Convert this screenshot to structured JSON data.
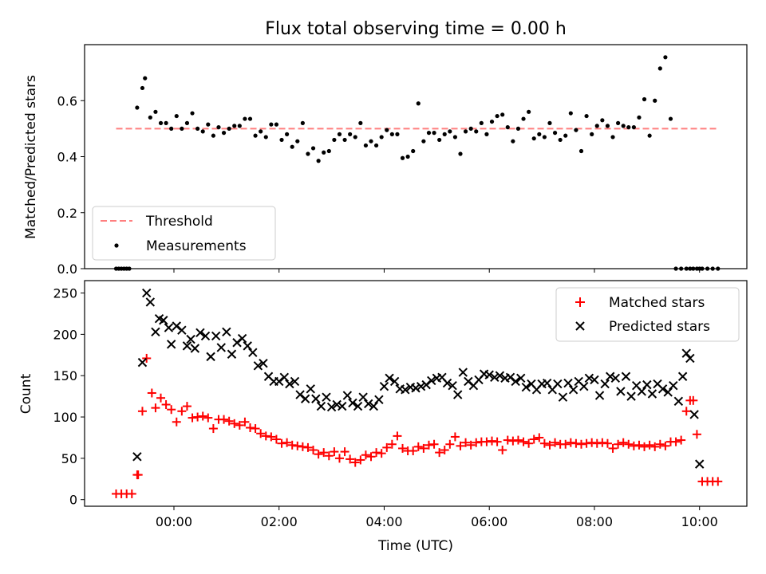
{
  "figure": {
    "title": "Flux total observing time = 0.00 h"
  },
  "chart_data": [
    {
      "type": "scatter",
      "panel": "top",
      "title": "Flux total observing time = 0.00 h",
      "xlabel": "",
      "ylabel": "Matched/Predicted stars",
      "x_unit": "hours from 00:00 UTC",
      "xlim": [
        -1.7,
        10.9
      ],
      "ylim": [
        0,
        0.8
      ],
      "yticks": [
        0.0,
        0.2,
        0.4,
        0.6
      ],
      "ytick_labels": [
        "0.0",
        "0.2",
        "0.4",
        "0.6"
      ],
      "legend_position": "lower-left",
      "series": [
        {
          "name": "Threshold",
          "kind": "line",
          "color": "#ff7f7f",
          "x": [
            -1.1,
            10.35
          ],
          "y": [
            0.5,
            0.5
          ]
        },
        {
          "name": "Measurements",
          "kind": "scatter",
          "color": "#000000",
          "x": [
            -1.1,
            -1.05,
            -1.0,
            -0.95,
            -0.9,
            -0.85,
            -0.7,
            -0.6,
            -0.55,
            -0.45,
            -0.35,
            -0.25,
            -0.15,
            -0.05,
            0.05,
            0.15,
            0.25,
            0.35,
            0.45,
            0.55,
            0.65,
            0.75,
            0.85,
            0.95,
            1.05,
            1.15,
            1.25,
            1.35,
            1.45,
            1.55,
            1.65,
            1.75,
            1.85,
            1.95,
            2.05,
            2.15,
            2.25,
            2.35,
            2.45,
            2.55,
            2.65,
            2.75,
            2.85,
            2.95,
            3.05,
            3.15,
            3.25,
            3.35,
            3.45,
            3.55,
            3.65,
            3.75,
            3.85,
            3.95,
            4.05,
            4.15,
            4.25,
            4.35,
            4.45,
            4.55,
            4.65,
            4.75,
            4.85,
            4.95,
            5.05,
            5.15,
            5.25,
            5.35,
            5.45,
            5.55,
            5.65,
            5.75,
            5.85,
            5.95,
            6.05,
            6.15,
            6.25,
            6.35,
            6.45,
            6.55,
            6.65,
            6.75,
            6.85,
            6.95,
            7.05,
            7.15,
            7.25,
            7.35,
            7.45,
            7.55,
            7.65,
            7.75,
            7.85,
            7.95,
            8.05,
            8.15,
            8.25,
            8.35,
            8.45,
            8.55,
            8.65,
            8.75,
            8.85,
            8.95,
            9.05,
            9.15,
            9.25,
            9.35,
            9.45,
            9.55,
            9.65,
            9.75,
            9.82,
            9.88,
            9.95,
            10.0,
            10.05,
            10.15,
            10.25,
            10.35
          ],
          "y": [
            0.0,
            0.0,
            0.0,
            0.0,
            0.0,
            0.0,
            0.575,
            0.645,
            0.68,
            0.54,
            0.56,
            0.52,
            0.52,
            0.5,
            0.545,
            0.5,
            0.52,
            0.555,
            0.5,
            0.49,
            0.515,
            0.475,
            0.505,
            0.485,
            0.5,
            0.51,
            0.51,
            0.535,
            0.535,
            0.475,
            0.49,
            0.47,
            0.515,
            0.515,
            0.46,
            0.48,
            0.435,
            0.455,
            0.52,
            0.41,
            0.43,
            0.385,
            0.415,
            0.42,
            0.46,
            0.48,
            0.46,
            0.48,
            0.47,
            0.52,
            0.44,
            0.455,
            0.44,
            0.47,
            0.495,
            0.48,
            0.48,
            0.395,
            0.4,
            0.42,
            0.59,
            0.455,
            0.485,
            0.485,
            0.46,
            0.48,
            0.49,
            0.47,
            0.41,
            0.49,
            0.5,
            0.49,
            0.52,
            0.48,
            0.525,
            0.545,
            0.55,
            0.505,
            0.455,
            0.5,
            0.535,
            0.56,
            0.465,
            0.48,
            0.47,
            0.52,
            0.485,
            0.46,
            0.475,
            0.555,
            0.495,
            0.42,
            0.545,
            0.48,
            0.51,
            0.53,
            0.51,
            0.47,
            0.52,
            0.51,
            0.505,
            0.505,
            0.54,
            0.605,
            0.475,
            0.6,
            0.715,
            0.755,
            0.535,
            0.0,
            0.0,
            0.0,
            0.0,
            0.0,
            0.0,
            0.0,
            0.0,
            0.0,
            0.0,
            0.0
          ]
        }
      ]
    },
    {
      "type": "scatter",
      "panel": "bottom",
      "xlabel": "Time (UTC)",
      "ylabel": "Count",
      "x_unit": "hours from 00:00 UTC",
      "xlim": [
        -1.7,
        10.9
      ],
      "ylim": [
        -8,
        265
      ],
      "xticks": [
        0,
        2,
        4,
        6,
        8,
        10
      ],
      "xtick_labels": [
        "00:00",
        "02:00",
        "04:00",
        "06:00",
        "08:00",
        "10:00"
      ],
      "yticks": [
        0,
        50,
        100,
        150,
        200,
        250
      ],
      "ytick_labels": [
        "0",
        "50",
        "100",
        "150",
        "200",
        "250"
      ],
      "legend_position": "top-right",
      "series": [
        {
          "name": "Matched stars",
          "marker": "+",
          "color": "#ff0000",
          "x": [
            -1.1,
            -1.0,
            -0.9,
            -0.8,
            -0.7,
            -0.68,
            -0.6,
            -0.52,
            -0.42,
            -0.35,
            -0.25,
            -0.15,
            -0.05,
            0.05,
            0.15,
            0.25,
            0.35,
            0.45,
            0.55,
            0.65,
            0.75,
            0.85,
            0.95,
            1.05,
            1.15,
            1.25,
            1.35,
            1.45,
            1.55,
            1.65,
            1.75,
            1.85,
            1.95,
            2.05,
            2.15,
            2.25,
            2.35,
            2.45,
            2.55,
            2.65,
            2.75,
            2.85,
            2.95,
            3.05,
            3.15,
            3.25,
            3.35,
            3.45,
            3.55,
            3.65,
            3.75,
            3.85,
            3.95,
            4.05,
            4.15,
            4.25,
            4.35,
            4.45,
            4.55,
            4.65,
            4.75,
            4.85,
            4.95,
            5.05,
            5.15,
            5.25,
            5.35,
            5.45,
            5.55,
            5.65,
            5.75,
            5.85,
            5.95,
            6.05,
            6.15,
            6.25,
            6.35,
            6.45,
            6.55,
            6.65,
            6.75,
            6.85,
            6.95,
            7.05,
            7.15,
            7.25,
            7.35,
            7.45,
            7.55,
            7.65,
            7.75,
            7.85,
            7.95,
            8.05,
            8.15,
            8.25,
            8.35,
            8.45,
            8.55,
            8.65,
            8.75,
            8.85,
            8.95,
            9.05,
            9.15,
            9.25,
            9.35,
            9.45,
            9.55,
            9.65,
            9.75,
            9.82,
            9.88,
            9.95,
            10.05,
            10.15,
            10.25,
            10.35
          ],
          "y": [
            7,
            7,
            7,
            7,
            30,
            30,
            107,
            171,
            129,
            111,
            123,
            115,
            109,
            94,
            107,
            113,
            99,
            100,
            101,
            99,
            86,
            97,
            97,
            95,
            92,
            90,
            94,
            87,
            86,
            80,
            77,
            76,
            73,
            68,
            69,
            66,
            65,
            64,
            63,
            60,
            55,
            57,
            53,
            58,
            50,
            58,
            49,
            45,
            48,
            54,
            52,
            57,
            56,
            63,
            67,
            77,
            62,
            59,
            59,
            64,
            62,
            66,
            67,
            57,
            60,
            67,
            76,
            65,
            69,
            66,
            69,
            70,
            70,
            71,
            70,
            60,
            72,
            71,
            72,
            70,
            68,
            73,
            75,
            68,
            66,
            69,
            67,
            67,
            69,
            68,
            67,
            68,
            69,
            68,
            69,
            68,
            62,
            67,
            69,
            67,
            65,
            66,
            64,
            66,
            64,
            67,
            65,
            70,
            70,
            72,
            107,
            120,
            120,
            79,
            22,
            22,
            22,
            22
          ]
        },
        {
          "name": "Predicted stars",
          "marker": "x",
          "color": "#000000",
          "x": [
            -0.7,
            -0.6,
            -0.52,
            -0.45,
            -0.35,
            -0.28,
            -0.2,
            -0.1,
            -0.05,
            0.05,
            0.15,
            0.25,
            0.32,
            0.4,
            0.5,
            0.6,
            0.7,
            0.8,
            0.9,
            1.0,
            1.1,
            1.2,
            1.3,
            1.4,
            1.5,
            1.6,
            1.7,
            1.8,
            1.9,
            2.0,
            2.1,
            2.2,
            2.3,
            2.4,
            2.5,
            2.6,
            2.7,
            2.8,
            2.9,
            3.0,
            3.1,
            3.2,
            3.3,
            3.4,
            3.5,
            3.6,
            3.7,
            3.8,
            3.9,
            4.0,
            4.1,
            4.2,
            4.3,
            4.4,
            4.5,
            4.6,
            4.7,
            4.8,
            4.9,
            5.0,
            5.1,
            5.2,
            5.3,
            5.4,
            5.5,
            5.6,
            5.7,
            5.8,
            5.9,
            6.0,
            6.1,
            6.2,
            6.3,
            6.4,
            6.5,
            6.6,
            6.7,
            6.8,
            6.9,
            7.0,
            7.1,
            7.2,
            7.3,
            7.4,
            7.5,
            7.6,
            7.7,
            7.8,
            7.9,
            8.0,
            8.1,
            8.2,
            8.3,
            8.4,
            8.5,
            8.6,
            8.7,
            8.8,
            8.9,
            9.0,
            9.1,
            9.2,
            9.3,
            9.4,
            9.5,
            9.6,
            9.68,
            9.75,
            9.82,
            9.9,
            10.0
          ],
          "y": [
            52,
            166,
            250,
            239,
            203,
            219,
            217,
            208,
            188,
            210,
            205,
            186,
            194,
            183,
            202,
            198,
            173,
            198,
            184,
            203,
            176,
            190,
            195,
            186,
            178,
            162,
            165,
            149,
            143,
            143,
            148,
            140,
            143,
            127,
            122,
            134,
            122,
            113,
            124,
            112,
            115,
            113,
            126,
            117,
            113,
            124,
            116,
            113,
            121,
            137,
            147,
            143,
            134,
            133,
            136,
            135,
            137,
            139,
            144,
            147,
            148,
            141,
            138,
            127,
            154,
            143,
            138,
            145,
            152,
            151,
            148,
            150,
            147,
            148,
            143,
            147,
            136,
            140,
            133,
            140,
            141,
            133,
            140,
            124,
            141,
            133,
            143,
            137,
            147,
            145,
            126,
            140,
            149,
            147,
            131,
            149,
            125,
            138,
            131,
            139,
            128,
            140,
            134,
            130,
            138,
            119,
            149,
            177,
            171,
            103,
            43
          ]
        }
      ]
    }
  ]
}
